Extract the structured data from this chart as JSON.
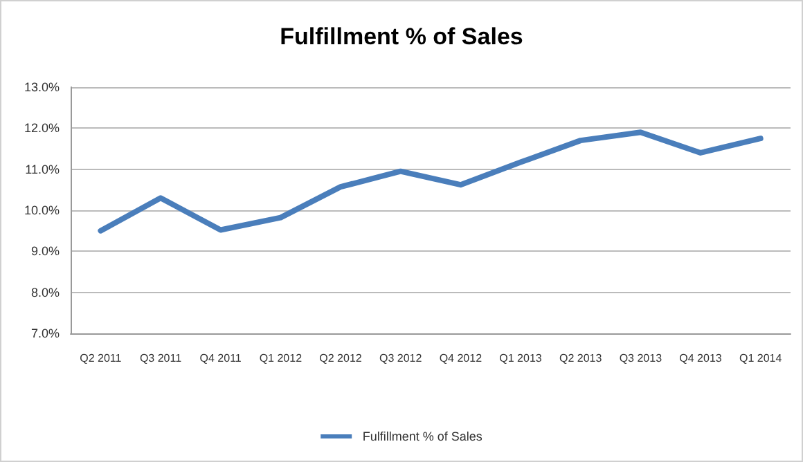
{
  "chart_data": {
    "type": "line",
    "title": "Fulfillment % of Sales",
    "categories": [
      "Q2 2011",
      "Q3 2011",
      "Q4 2011",
      "Q1 2012",
      "Q2 2012",
      "Q3 2012",
      "Q4 2012",
      "Q1 2013",
      "Q2 2013",
      "Q3 2013",
      "Q4 2013",
      "Q1 2014"
    ],
    "series": [
      {
        "name": "Fulfillment % of Sales",
        "color": "#4a7ebb",
        "values": [
          9.5,
          10.3,
          9.52,
          9.82,
          10.57,
          10.95,
          10.62,
          11.17,
          11.7,
          11.9,
          11.4,
          11.75
        ]
      }
    ],
    "ylim": [
      7,
      13
    ],
    "yticks": [
      {
        "value": 7,
        "label": "7.0%"
      },
      {
        "value": 8,
        "label": "8.0%"
      },
      {
        "value": 9,
        "label": "9.0%"
      },
      {
        "value": 10,
        "label": "10.0%"
      },
      {
        "value": 11,
        "label": "11.0%"
      },
      {
        "value": 12,
        "label": "12.0%"
      },
      {
        "value": 13,
        "label": "13.0%"
      }
    ],
    "grid": "y",
    "legend": "bottom",
    "marker": "none",
    "line_style": "solid"
  }
}
